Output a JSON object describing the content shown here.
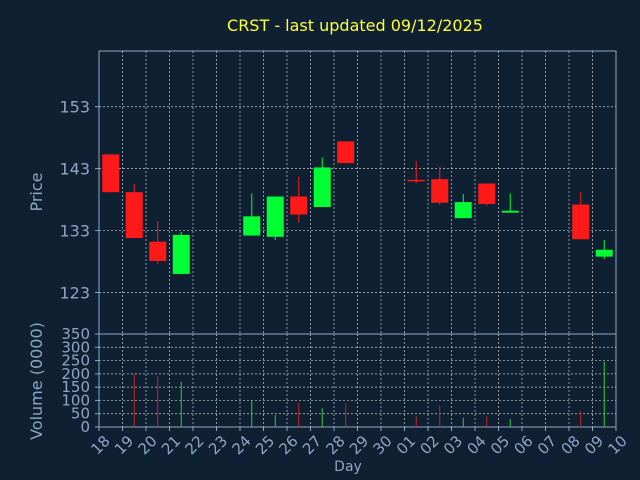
{
  "colors": {
    "background": "#0f2033",
    "plot_background": "#0f2033",
    "axis": "#8ea6c4",
    "grid": "#c8c8c8",
    "title": "#ffff33",
    "label": "#8ea6c4",
    "up": "#00ff33",
    "down": "#ff1a1a",
    "volume_up": "#33cc33",
    "volume_down": "#cc2222"
  },
  "chart_data": {
    "type": "candlestick",
    "title": "CRST - last updated 09/12/2025",
    "xlabel": "Day",
    "price": {
      "ylabel": "Price",
      "ylim": [
        116.3,
        162
      ],
      "yticks": [
        123,
        133,
        143,
        153
      ]
    },
    "volume": {
      "ylabel": "Volume (0000)",
      "ylim": [
        0,
        350
      ],
      "yticks": [
        0,
        50,
        100,
        150,
        200,
        250,
        300,
        350
      ]
    },
    "x_tick_labels": [
      "18",
      "19",
      "20",
      "21",
      "22",
      "23",
      "24",
      "25",
      "26",
      "27",
      "28",
      "29",
      "30",
      "01",
      "02",
      "03",
      "04",
      "05",
      "06",
      "07",
      "08",
      "09",
      "10"
    ],
    "grid": true,
    "candles": [
      {
        "day": "18",
        "open": 145.3,
        "high": 145.3,
        "low": 139.2,
        "close": 139.2,
        "volume": 0
      },
      {
        "day": "19",
        "open": 139.2,
        "high": 140.5,
        "low": 131.8,
        "close": 131.8,
        "volume": 200
      },
      {
        "day": "20",
        "open": 131.2,
        "high": 134.5,
        "low": 127.6,
        "close": 128.1,
        "volume": 190
      },
      {
        "day": "21",
        "open": 126.0,
        "high": 132.8,
        "low": 126.0,
        "close": 132.3,
        "volume": 170
      },
      {
        "day": "24",
        "open": 132.2,
        "high": 139.0,
        "low": 132.2,
        "close": 135.3,
        "volume": 100
      },
      {
        "day": "25",
        "open": 132.0,
        "high": 138.5,
        "low": 131.5,
        "close": 138.5,
        "volume": 45
      },
      {
        "day": "26",
        "open": 138.5,
        "high": 141.7,
        "low": 134.3,
        "close": 135.6,
        "volume": 90
      },
      {
        "day": "27",
        "open": 136.8,
        "high": 144.8,
        "low": 136.8,
        "close": 143.2,
        "volume": 70
      },
      {
        "day": "28",
        "open": 147.4,
        "high": 147.4,
        "low": 143.9,
        "close": 143.9,
        "volume": 90
      },
      {
        "day": "01",
        "open": 141.2,
        "high": 144.2,
        "low": 140.7,
        "close": 141.0,
        "volume": 40
      },
      {
        "day": "02",
        "open": 141.3,
        "high": 143.3,
        "low": 137.2,
        "close": 137.5,
        "volume": 80
      },
      {
        "day": "03",
        "open": 135.0,
        "high": 138.9,
        "low": 135.0,
        "close": 137.6,
        "volume": 35
      },
      {
        "day": "04",
        "open": 140.6,
        "high": 140.6,
        "low": 137.0,
        "close": 137.3,
        "volume": 40
      },
      {
        "day": "05",
        "open": 135.9,
        "high": 139.0,
        "low": 135.9,
        "close": 136.2,
        "volume": 30
      },
      {
        "day": "08",
        "open": 137.2,
        "high": 139.2,
        "low": 131.6,
        "close": 131.6,
        "volume": 60
      },
      {
        "day": "09",
        "open": 128.8,
        "high": 131.5,
        "low": 128.4,
        "close": 129.9,
        "volume": 245
      }
    ]
  }
}
